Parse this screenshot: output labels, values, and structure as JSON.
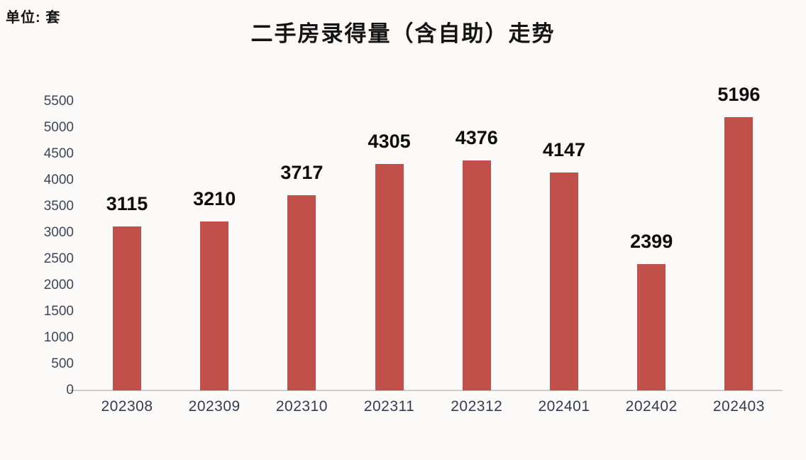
{
  "unit_label": "单位: 套",
  "chart_data": {
    "type": "bar",
    "title": "二手房录得量（含自助）走势",
    "categories": [
      "202308",
      "202309",
      "202310",
      "202311",
      "202312",
      "202401",
      "202402",
      "202403"
    ],
    "values": [
      3115,
      3210,
      3717,
      4305,
      4376,
      4147,
      2399,
      5196
    ],
    "data_labels_shown": true,
    "xlabel": "",
    "ylabel": "",
    "ylim": [
      0,
      5500
    ],
    "ytick_step": 500,
    "ytick_labels": [
      "0",
      "500",
      "1000",
      "1500",
      "2000",
      "2500",
      "3000",
      "3500",
      "4000",
      "4500",
      "5000",
      "5500"
    ],
    "grid": false,
    "legend": null,
    "bar_color": "#c2504a",
    "axis_line_color": "#cfcecb",
    "value_label_color": "#0d0d0d",
    "tick_label_color": "#3d4657"
  }
}
